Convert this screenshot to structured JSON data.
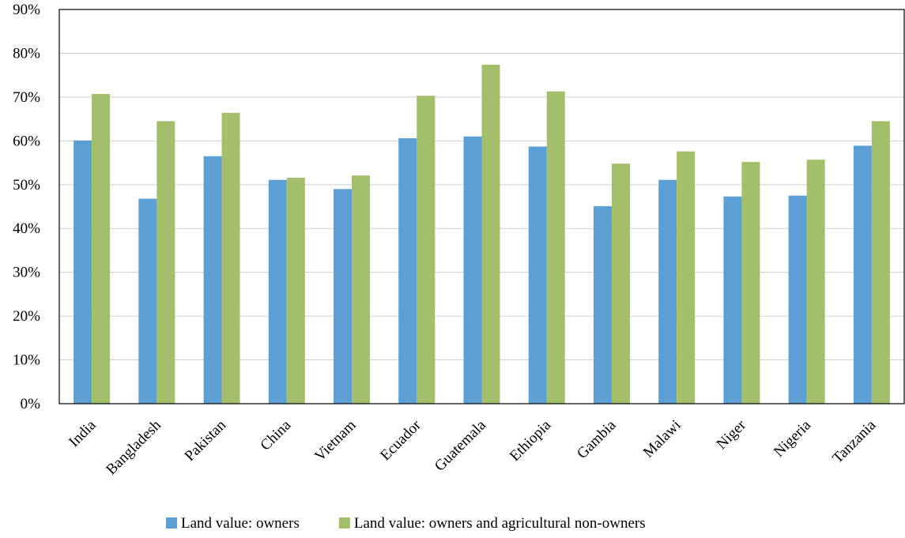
{
  "chart_data": {
    "type": "bar",
    "categories": [
      "India",
      "Bangladesh",
      "Pakistan",
      "China",
      "Vietnam",
      "Ecuador",
      "Guatemala",
      "Ethiopia",
      "Gambia",
      "Malawi",
      "Niger",
      "Nigeria",
      "Tanzania"
    ],
    "series": [
      {
        "name": "Land value: owners",
        "color": "#5b9fd4",
        "values": [
          60.1,
          46.8,
          56.5,
          51.1,
          49.0,
          60.6,
          61.0,
          58.7,
          45.1,
          51.1,
          47.3,
          47.5,
          58.9
        ]
      },
      {
        "name": "Land value: owners and agricultural non-owners",
        "color": "#a3bf6b",
        "values": [
          70.7,
          64.5,
          66.4,
          51.6,
          52.1,
          70.3,
          77.4,
          71.3,
          54.8,
          57.6,
          55.2,
          55.7,
          64.5
        ]
      }
    ],
    "ylim": [
      0,
      90
    ],
    "yticks": [
      {
        "value": 0,
        "label": "0%"
      },
      {
        "value": 10,
        "label": "10%"
      },
      {
        "value": 20,
        "label": "20%"
      },
      {
        "value": 30,
        "label": "30%"
      },
      {
        "value": 40,
        "label": "40%"
      },
      {
        "value": 50,
        "label": "50%"
      },
      {
        "value": 60,
        "label": "60%"
      },
      {
        "value": 70,
        "label": "70%"
      },
      {
        "value": 80,
        "label": "80%"
      },
      {
        "value": 90,
        "label": "90%"
      }
    ],
    "grid": true
  }
}
